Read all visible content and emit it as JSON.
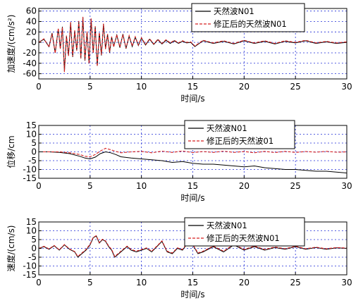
{
  "chart_data": [
    {
      "type": "line",
      "xlabel": "时间/s",
      "ylabel": "加速度/(cm/s²)",
      "xlim": [
        0,
        30
      ],
      "ylim": [
        -70,
        65
      ],
      "xticks": [
        0,
        5,
        10,
        15,
        20,
        25,
        30
      ],
      "yticks": [
        -60,
        -40,
        -20,
        0,
        20,
        40,
        60
      ],
      "grid": true,
      "legend": "top-right",
      "series": [
        {
          "name": "天然波N01",
          "color": "#000000",
          "style": "solid",
          "x": [
            0,
            0.5,
            1,
            1.3,
            1.6,
            1.9,
            2.1,
            2.3,
            2.5,
            2.7,
            2.9,
            3.1,
            3.3,
            3.5,
            3.7,
            3.9,
            4.1,
            4.3,
            4.5,
            4.7,
            4.9,
            5.1,
            5.3,
            5.5,
            5.7,
            5.9,
            6.1,
            6.3,
            6.5,
            6.7,
            6.9,
            7.1,
            7.3,
            7.6,
            7.9,
            8.2,
            8.5,
            8.8,
            9.1,
            9.4,
            9.7,
            10,
            10.4,
            10.8,
            11.2,
            11.6,
            12,
            12.4,
            12.8,
            13.2,
            13.6,
            14,
            14.4,
            14.8,
            15.2,
            16,
            17,
            18,
            19,
            20,
            21,
            22,
            23,
            24,
            25,
            26,
            27,
            28,
            29,
            30
          ],
          "values": [
            0,
            6,
            -8,
            18,
            -20,
            26,
            -12,
            30,
            -55,
            12,
            -25,
            38,
            -28,
            22,
            -15,
            40,
            -30,
            48,
            -35,
            20,
            -40,
            45,
            -20,
            30,
            -45,
            18,
            -25,
            35,
            -12,
            15,
            -20,
            10,
            -8,
            14,
            -10,
            16,
            -12,
            12,
            -8,
            10,
            -6,
            8,
            -5,
            6,
            -4,
            5,
            -3,
            4,
            -2,
            3,
            -2,
            2,
            -1,
            0,
            -8,
            3,
            -2,
            2,
            -3,
            3,
            -2,
            2,
            -3,
            2,
            -1,
            3,
            -2,
            1,
            -2,
            0
          ]
        },
        {
          "name": "修正后的天然波N01",
          "color": "#d62020",
          "style": "dashed",
          "x": [
            0,
            0.5,
            1,
            1.3,
            1.6,
            1.9,
            2.1,
            2.3,
            2.5,
            2.7,
            2.9,
            3.1,
            3.3,
            3.5,
            3.7,
            3.9,
            4.1,
            4.3,
            4.5,
            4.7,
            4.9,
            5.1,
            5.3,
            5.5,
            5.7,
            5.9,
            6.1,
            6.3,
            6.5,
            6.7,
            6.9,
            7.1,
            7.3,
            7.6,
            7.9,
            8.2,
            8.5,
            8.8,
            9.1,
            9.4,
            9.7,
            10,
            10.4,
            10.8,
            11.2,
            11.6,
            12,
            12.4,
            12.8,
            13.2,
            13.6,
            14,
            14.4,
            14.8,
            15.2,
            16,
            17,
            18,
            19,
            20,
            21,
            22,
            23,
            24,
            25,
            26,
            27,
            28,
            29,
            30
          ],
          "values": [
            0,
            7,
            -9,
            17,
            -21,
            27,
            -13,
            29,
            -57,
            13,
            -26,
            39,
            -27,
            23,
            -16,
            41,
            -31,
            49,
            -34,
            21,
            -41,
            46,
            -21,
            31,
            -46,
            19,
            -24,
            36,
            -13,
            16,
            -19,
            11,
            -9,
            15,
            -9,
            15,
            -11,
            13,
            -7,
            11,
            -5,
            9,
            -4,
            7,
            -3,
            6,
            -2,
            5,
            -1,
            4,
            -1,
            3,
            0,
            1,
            -7,
            4,
            -1,
            3,
            -2,
            4,
            -1,
            3,
            -2,
            3,
            0,
            4,
            -1,
            2,
            -1,
            1
          ]
        }
      ]
    },
    {
      "type": "line",
      "xlabel": "时间/s",
      "ylabel": "位移/cm",
      "xlim": [
        0,
        30
      ],
      "ylim": [
        -15,
        15
      ],
      "xticks": [
        0,
        5,
        10,
        15,
        20,
        25,
        30
      ],
      "yticks": [
        -15,
        -10,
        -5,
        0,
        5,
        10,
        15
      ],
      "grid": true,
      "legend": "top-right",
      "series": [
        {
          "name": "天然波N01",
          "color": "#000000",
          "style": "solid",
          "x": [
            0,
            1,
            2,
            3,
            4,
            4.5,
            5,
            5.5,
            6,
            6.5,
            7,
            7.5,
            8,
            9,
            10,
            11,
            12,
            13,
            14,
            15,
            16,
            17,
            18,
            19,
            20,
            21,
            22,
            23,
            24,
            25,
            26,
            27,
            28,
            29,
            30
          ],
          "values": [
            0,
            0,
            -0.3,
            -1,
            -2.5,
            -3.5,
            -4,
            -3,
            -1,
            0,
            -0.5,
            -1.5,
            -2.8,
            -3.5,
            -4,
            -4.5,
            -5,
            -6,
            -5.5,
            -6.5,
            -7,
            -7,
            -7.5,
            -8,
            -8.5,
            -8,
            -9,
            -9.5,
            -10,
            -10,
            -10.5,
            -11,
            -11,
            -11.5,
            -12
          ]
        },
        {
          "name": "修正后的天然波01",
          "color": "#d62020",
          "style": "dashed",
          "x": [
            0,
            1,
            2,
            3,
            4,
            4.5,
            5,
            5.5,
            6,
            6.5,
            7,
            7.5,
            8,
            9,
            10,
            11,
            12,
            13,
            14,
            15,
            16,
            17,
            18,
            19,
            20,
            21,
            22,
            23,
            24,
            25,
            26,
            27,
            28,
            29,
            30
          ],
          "values": [
            0,
            0,
            0,
            -0.5,
            -1.5,
            -2.5,
            -2.8,
            -1.5,
            0.5,
            2,
            1.2,
            0.3,
            -0.5,
            0,
            0.3,
            -0.5,
            0.4,
            -0.3,
            0.5,
            -0.4,
            0.2,
            -0.3,
            0.4,
            -0.3,
            0.2,
            -0.5,
            0.3,
            -0.4,
            0.3,
            -0.3,
            0.2,
            -0.2,
            0.3,
            -0.2,
            0
          ]
        }
      ]
    },
    {
      "type": "line",
      "xlabel": "时间/s",
      "ylabel": "速度/(cm/s)",
      "xlim": [
        0,
        30
      ],
      "ylim": [
        -15,
        15
      ],
      "xticks": [
        0,
        5,
        10,
        15,
        20,
        25,
        30
      ],
      "yticks": [
        -15,
        -10,
        -5,
        0,
        5,
        10,
        15
      ],
      "grid": true,
      "legend": "top-right",
      "series": [
        {
          "name": "天然波N01",
          "color": "#000000",
          "style": "solid",
          "x": [
            0,
            0.5,
            1,
            1.5,
            2,
            2.5,
            3,
            3.5,
            3.8,
            4.2,
            4.6,
            5,
            5.3,
            5.6,
            5.9,
            6.2,
            6.5,
            6.8,
            7.1,
            7.4,
            7.8,
            8.2,
            8.6,
            9,
            9.5,
            10,
            10.5,
            11,
            11.5,
            12,
            12.5,
            13,
            13.5,
            14,
            14.5,
            15,
            15.5,
            16,
            17,
            18,
            19,
            20,
            21,
            22,
            23,
            24,
            25,
            26,
            27,
            28,
            29,
            30
          ],
          "values": [
            0,
            1,
            -0.5,
            1.5,
            -1,
            2,
            -0.5,
            -2,
            -5,
            -3,
            -1,
            2,
            6,
            7,
            3,
            5,
            4,
            1,
            -1,
            -5,
            -3,
            -1,
            1,
            -1,
            -2,
            -1,
            0,
            -2,
            1,
            4,
            -2,
            -3,
            0,
            -1,
            3,
            2,
            -3,
            -2,
            1,
            -2,
            2,
            -1,
            1,
            -1,
            0.5,
            -0.5,
            1,
            -0.5,
            0.5,
            -0.5,
            0.3,
            0
          ]
        },
        {
          "name": "修正后的天然波N01",
          "color": "#d62020",
          "style": "dashed",
          "x": [
            0,
            0.5,
            1,
            1.5,
            2,
            2.5,
            3,
            3.5,
            3.8,
            4.2,
            4.6,
            5,
            5.3,
            5.6,
            5.9,
            6.2,
            6.5,
            6.8,
            7.1,
            7.4,
            7.8,
            8.2,
            8.6,
            9,
            9.5,
            10,
            10.5,
            11,
            11.5,
            12,
            12.5,
            13,
            13.5,
            14,
            14.5,
            15,
            15.5,
            16,
            17,
            18,
            19,
            20,
            21,
            22,
            23,
            24,
            25,
            26,
            27,
            28,
            29,
            30
          ],
          "values": [
            0,
            1.2,
            -0.3,
            1.7,
            -0.8,
            2.2,
            -0.3,
            -1.8,
            -4.6,
            -2.6,
            -0.6,
            2.4,
            6.3,
            7.2,
            3.3,
            5.2,
            4.3,
            1.4,
            -0.6,
            -4.6,
            -2.6,
            -0.6,
            1.3,
            -0.6,
            -1.6,
            -0.6,
            0.3,
            -1.6,
            1.3,
            4.3,
            -1.6,
            -2.6,
            0.3,
            -0.6,
            3.3,
            2.3,
            -2.6,
            -1.6,
            1.3,
            -1.6,
            2.3,
            -0.6,
            1.3,
            -0.6,
            0.8,
            -0.2,
            1.2,
            -0.2,
            0.7,
            -0.2,
            0.5,
            0.2
          ]
        }
      ]
    }
  ]
}
